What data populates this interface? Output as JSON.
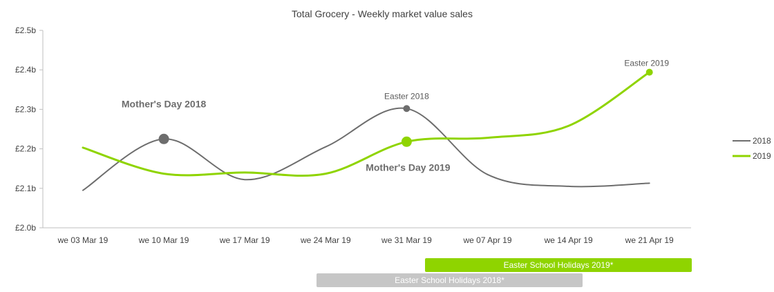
{
  "chart_data": {
    "type": "line",
    "title": "Total Grocery - Weekly market value sales",
    "categories": [
      "we 03 Mar 19",
      "we 10 Mar 19",
      "we 17 Mar 19",
      "we 24 Mar 19",
      "we 31 Mar 19",
      "we 07 Apr 19",
      "we 14 Apr 19",
      "we 21 Apr 19"
    ],
    "y_ticks": [
      "£2.0b",
      "£2.1b",
      "£2.2b",
      "£2.3b",
      "£2.4b",
      "£2.5b"
    ],
    "ylim": [
      2.0,
      2.5
    ],
    "series": [
      {
        "name": "2018",
        "color": "#6d6d6d",
        "values": [
          2.095,
          2.225,
          2.122,
          2.205,
          2.302,
          2.135,
          2.105,
          2.113
        ]
      },
      {
        "name": "2019",
        "color": "#8fd400",
        "values": [
          2.203,
          2.137,
          2.14,
          2.137,
          2.218,
          2.228,
          2.258,
          2.394
        ]
      }
    ],
    "legend_position": "right",
    "annotations": [
      {
        "text": "Mother's Day 2018",
        "series": "2018",
        "category_index": 1
      },
      {
        "text": "Easter 2018",
        "series": "2018",
        "category_index": 4
      },
      {
        "text": "Mother's Day 2019",
        "series": "2019",
        "category_index": 4
      },
      {
        "text": "Easter 2019",
        "series": "2019",
        "category_index": 7
      }
    ],
    "holiday_bands": [
      {
        "label": "Easter School Holidays 2019*",
        "color": "#8fd400"
      },
      {
        "label": "Easter School Holidays 2018*",
        "color": "#c6c6c6"
      }
    ]
  }
}
